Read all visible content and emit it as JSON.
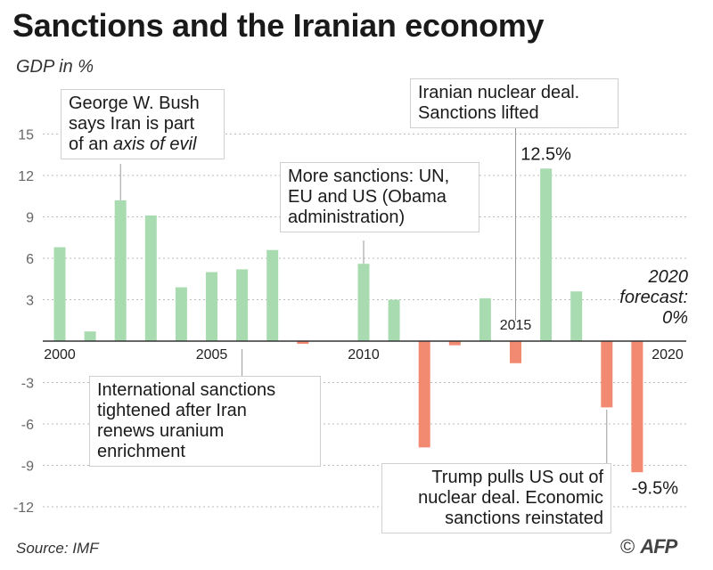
{
  "title": "Sanctions and the Iranian economy",
  "subtitle": "GDP in %",
  "source": "Source: IMF",
  "credit": {
    "symbol": "©",
    "logo": "AFP"
  },
  "colors": {
    "positive": "#a8dcb0",
    "negative": "#f28a72",
    "grid": "#bbbbbb",
    "axis": "#333333"
  },
  "chart_data": {
    "type": "bar",
    "x": [
      2000,
      2001,
      2002,
      2003,
      2004,
      2005,
      2006,
      2007,
      2008,
      2009,
      2010,
      2011,
      2012,
      2013,
      2014,
      2015,
      2016,
      2017,
      2018,
      2019
    ],
    "values": [
      6.8,
      0.7,
      10.2,
      9.1,
      3.9,
      5.0,
      5.2,
      6.6,
      -0.2,
      0.0,
      5.6,
      3.0,
      -7.7,
      -0.3,
      3.1,
      -1.6,
      12.5,
      3.6,
      -4.8,
      -9.5
    ],
    "ylim": [
      -13,
      15
    ],
    "yticks": [
      "15",
      "12",
      "9",
      "6",
      "3",
      "-3",
      "-6",
      "-9",
      "-12"
    ],
    "ytick_values": [
      15,
      12,
      9,
      6,
      3,
      -3,
      -6,
      -9,
      -12
    ],
    "xticks": [
      "2000",
      "2005",
      "2010",
      "2015",
      "2020"
    ],
    "xtick_values": [
      2000,
      2005,
      2010,
      2015,
      2020
    ],
    "data_labels": [
      {
        "year": 2016,
        "text": "12.5%"
      },
      {
        "year": 2019,
        "text": "-9.5%"
      }
    ],
    "forecast": {
      "year": 2020,
      "lines": [
        "2020",
        "forecast:",
        "0%"
      ]
    },
    "annotations": [
      {
        "year": 2002,
        "lines": [
          [
            "George W. Bush",
            ""
          ],
          [
            "says Iran is part",
            ""
          ],
          [
            "of an ",
            "axis of evil"
          ]
        ]
      },
      {
        "year": 2006,
        "lines": [
          [
            "International sanctions",
            ""
          ],
          [
            "tightened after Iran",
            ""
          ],
          [
            "renews uranium",
            ""
          ],
          [
            "enrichment",
            ""
          ]
        ]
      },
      {
        "year": 2010,
        "lines": [
          [
            "More sanctions: UN,",
            ""
          ],
          [
            "EU and US (Obama",
            ""
          ],
          [
            "administration)",
            ""
          ]
        ]
      },
      {
        "year": 2015,
        "lines": [
          [
            "Iranian nuclear deal.",
            ""
          ],
          [
            "Sanctions lifted",
            ""
          ]
        ]
      },
      {
        "year": 2018,
        "lines": [
          [
            "Trump pulls US out of",
            ""
          ],
          [
            "nuclear deal. Economic",
            ""
          ],
          [
            "sanctions reinstated",
            ""
          ]
        ]
      }
    ]
  }
}
